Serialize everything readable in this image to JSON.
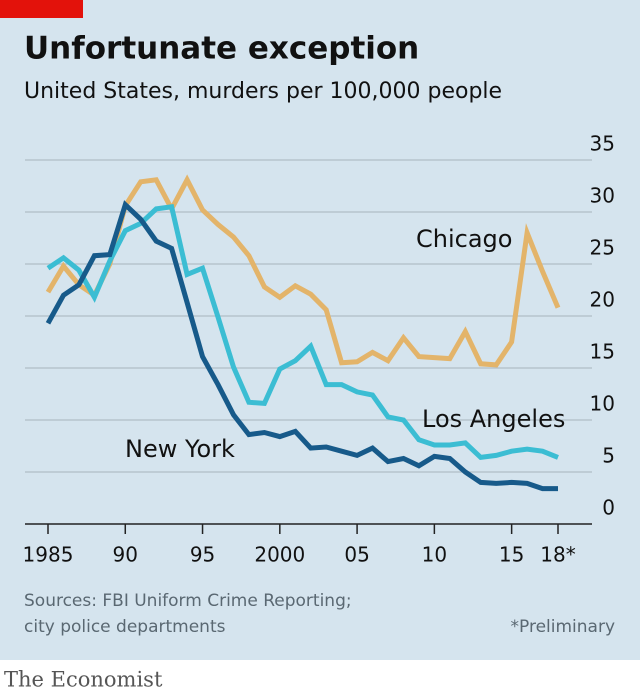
{
  "chart_data": {
    "type": "line",
    "title": "Unfortunate exception",
    "subtitle": "United States, murders per 100,000 people",
    "x": [
      1985,
      1986,
      1987,
      1988,
      1989,
      1990,
      1991,
      1992,
      1993,
      1994,
      1995,
      1996,
      1997,
      1998,
      1999,
      2000,
      2001,
      2002,
      2003,
      2004,
      2005,
      2006,
      2007,
      2008,
      2009,
      2010,
      2011,
      2012,
      2013,
      2014,
      2015,
      2016,
      2017,
      2018
    ],
    "series": [
      {
        "name": "Chicago",
        "color": "#e3b46a",
        "values": [
          22.3,
          24.8,
          23.0,
          22.0,
          25.0,
          30.6,
          32.9,
          33.1,
          30.3,
          33.1,
          30.2,
          28.8,
          27.6,
          25.8,
          22.8,
          21.8,
          22.9,
          22.1,
          20.6,
          15.5,
          15.6,
          16.5,
          15.7,
          17.9,
          16.1,
          16.0,
          15.9,
          18.5,
          15.4,
          15.3,
          17.5,
          28.0,
          24.3,
          20.8
        ]
      },
      {
        "name": "Los Angeles",
        "color": "#3bbdd3",
        "values": [
          24.6,
          25.6,
          24.4,
          21.8,
          25.3,
          28.2,
          28.9,
          30.3,
          30.5,
          24.0,
          24.6,
          19.9,
          15.1,
          11.7,
          11.6,
          14.9,
          15.7,
          17.1,
          13.4,
          13.4,
          12.7,
          12.4,
          10.3,
          10.0,
          8.1,
          7.6,
          7.6,
          7.8,
          6.4,
          6.6,
          7.0,
          7.2,
          7.0,
          6.4
        ]
      },
      {
        "name": "New York",
        "color": "#175a8a",
        "values": [
          19.3,
          22.0,
          23.0,
          25.8,
          25.9,
          30.7,
          29.3,
          27.2,
          26.5,
          21.3,
          16.1,
          13.4,
          10.5,
          8.6,
          8.8,
          8.4,
          8.9,
          7.3,
          7.4,
          7.0,
          6.6,
          7.3,
          6.0,
          6.3,
          5.6,
          6.5,
          6.3,
          5.0,
          4.0,
          3.9,
          4.0,
          3.9,
          3.4,
          3.4
        ]
      }
    ],
    "xlim": [
      1985,
      2018
    ],
    "xticks": [
      1985,
      {
        "value": 1990,
        "label": "90"
      },
      {
        "value": 1995,
        "label": "95"
      },
      2000,
      {
        "value": 2005,
        "label": "05"
      },
      {
        "value": 2010,
        "label": "10"
      },
      {
        "value": 2015,
        "label": "15"
      },
      {
        "value": 2018,
        "label": "18*"
      }
    ],
    "ylim": [
      0,
      35
    ],
    "yticks": [
      0,
      5,
      10,
      15,
      20,
      25,
      30,
      35
    ],
    "grid": true,
    "sources": [
      "Sources: FBI Uniform Crime Reporting;",
      "city police departments"
    ],
    "note": "*Preliminary",
    "publisher": "The Economist"
  }
}
